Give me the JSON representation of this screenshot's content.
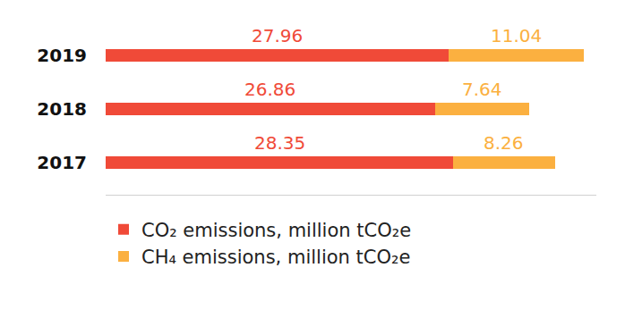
{
  "chart_data": {
    "type": "bar",
    "orientation": "horizontal",
    "stacked": true,
    "categories": [
      "2019",
      "2018",
      "2017"
    ],
    "series": [
      {
        "name": "CO₂ emissions, million tCO₂e",
        "color": "#f04a38",
        "values": [
          27.96,
          26.86,
          28.35
        ]
      },
      {
        "name": "CH₄ emissions, million tCO₂e",
        "color": "#fbb040",
        "values": [
          11.04,
          7.64,
          8.26
        ]
      }
    ],
    "xlim": [
      0,
      40
    ],
    "grid": false,
    "data_labels": true,
    "tick_labels": "y",
    "legend": "bottom left"
  }
}
